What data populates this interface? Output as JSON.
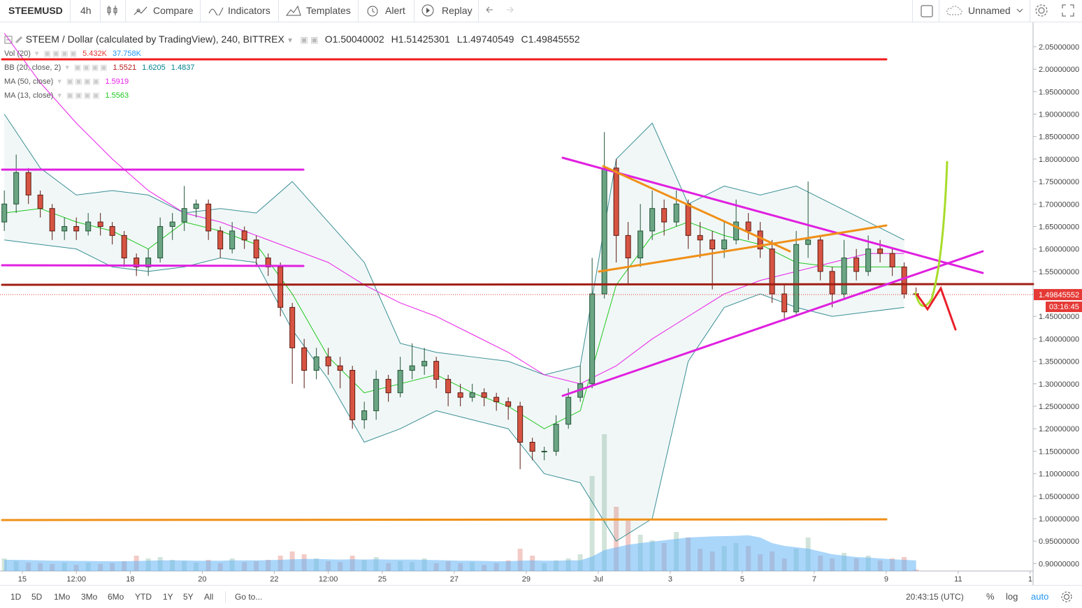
{
  "toolbar": {
    "symbol": "STEEMUSD",
    "interval": "4h",
    "buttons": [
      "Compare",
      "Indicators",
      "Templates",
      "Alert",
      "Replay"
    ],
    "layout_name": "Unnamed"
  },
  "legend": {
    "title": "STEEM / Dollar (calculated by TradingView), 240, BITTREX",
    "ohlc": [
      "O1.50040002",
      "H1.51425301",
      "L1.49740549",
      "C1.49845552"
    ],
    "studies": [
      {
        "label": "Vol (20)",
        "values": [
          "5.432K",
          "37.758K"
        ],
        "colors": [
          "#e53935",
          "#2196f3"
        ]
      },
      {
        "label": "BB (20, close, 2)",
        "values": [
          "1.5521",
          "1.6205",
          "1.4837"
        ],
        "colors": [
          "#b71c1c",
          "#00838f",
          "#00838f"
        ]
      },
      {
        "label": "MA (50, close)",
        "values": [
          "1.5919"
        ],
        "colors": [
          "#e91ee9"
        ]
      },
      {
        "label": "MA (13, close)",
        "values": [
          "1.5563"
        ],
        "colors": [
          "#1ec81e"
        ]
      }
    ]
  },
  "chart_data": {
    "type": "candlestick",
    "x": [
      -0.5,
      -0.17,
      0.17,
      0.5,
      0.83,
      1.17,
      1.5,
      1.83,
      2.17,
      2.5,
      2.83,
      3.17,
      3.5,
      3.83,
      4.17,
      4.5,
      4.83,
      5.17,
      5.5,
      5.83,
      6.17,
      6.5,
      6.83,
      7.17,
      7.5,
      7.83,
      8.17,
      8.5,
      8.83,
      9.17,
      9.5,
      9.83,
      10.17,
      10.5,
      10.83,
      11.17,
      11.5,
      11.83,
      12.17,
      12.5,
      12.83,
      13.17,
      13.5,
      13.83,
      14.17,
      14.5,
      14.83,
      15.17,
      15.5,
      15.83,
      16.17,
      16.5,
      16.83,
      17.17,
      17.5,
      17.83,
      18.17,
      18.5,
      18.83,
      19.17,
      19.5,
      19.83,
      20.17,
      20.5,
      20.83,
      21.17,
      21.5,
      21.83,
      22.17,
      22.5,
      22.83,
      23.17,
      23.5,
      23.83,
      24.17,
      24.5,
      24.83
    ],
    "candles": [
      [
        1.66,
        1.73,
        1.64,
        1.7
      ],
      [
        1.7,
        1.81,
        1.68,
        1.77
      ],
      [
        1.77,
        1.78,
        1.7,
        1.72
      ],
      [
        1.72,
        1.73,
        1.67,
        1.69
      ],
      [
        1.69,
        1.7,
        1.62,
        1.64
      ],
      [
        1.64,
        1.67,
        1.62,
        1.65
      ],
      [
        1.65,
        1.67,
        1.62,
        1.64
      ],
      [
        1.64,
        1.68,
        1.63,
        1.66
      ],
      [
        1.66,
        1.68,
        1.63,
        1.65
      ],
      [
        1.65,
        1.66,
        1.61,
        1.63
      ],
      [
        1.63,
        1.64,
        1.56,
        1.58
      ],
      [
        1.58,
        1.59,
        1.54,
        1.56
      ],
      [
        1.56,
        1.6,
        1.54,
        1.58
      ],
      [
        1.58,
        1.67,
        1.57,
        1.65
      ],
      [
        1.65,
        1.68,
        1.62,
        1.66
      ],
      [
        1.66,
        1.74,
        1.64,
        1.69
      ],
      [
        1.69,
        1.71,
        1.67,
        1.7
      ],
      [
        1.7,
        1.71,
        1.62,
        1.64
      ],
      [
        1.64,
        1.65,
        1.58,
        1.6
      ],
      [
        1.6,
        1.66,
        1.59,
        1.64
      ],
      [
        1.64,
        1.65,
        1.6,
        1.62
      ],
      [
        1.62,
        1.63,
        1.56,
        1.58
      ],
      [
        1.58,
        1.59,
        1.54,
        1.56
      ],
      [
        1.56,
        1.57,
        1.45,
        1.47
      ],
      [
        1.47,
        1.48,
        1.3,
        1.38
      ],
      [
        1.38,
        1.4,
        1.29,
        1.33
      ],
      [
        1.33,
        1.38,
        1.31,
        1.36
      ],
      [
        1.36,
        1.38,
        1.32,
        1.34
      ],
      [
        1.34,
        1.36,
        1.29,
        1.33
      ],
      [
        1.33,
        1.34,
        1.2,
        1.22
      ],
      [
        1.22,
        1.26,
        1.2,
        1.24
      ],
      [
        1.24,
        1.33,
        1.22,
        1.31
      ],
      [
        1.31,
        1.32,
        1.26,
        1.28
      ],
      [
        1.28,
        1.36,
        1.27,
        1.33
      ],
      [
        1.33,
        1.39,
        1.31,
        1.34
      ],
      [
        1.34,
        1.38,
        1.32,
        1.35
      ],
      [
        1.35,
        1.36,
        1.29,
        1.31
      ],
      [
        1.31,
        1.32,
        1.25,
        1.28
      ],
      [
        1.28,
        1.3,
        1.25,
        1.27
      ],
      [
        1.27,
        1.3,
        1.26,
        1.28
      ],
      [
        1.28,
        1.29,
        1.25,
        1.27
      ],
      [
        1.27,
        1.28,
        1.24,
        1.26
      ],
      [
        1.26,
        1.27,
        1.22,
        1.25
      ],
      [
        1.25,
        1.26,
        1.11,
        1.17
      ],
      [
        1.17,
        1.18,
        1.13,
        1.15
      ],
      [
        1.15,
        1.16,
        1.13,
        1.15
      ],
      [
        1.15,
        1.23,
        1.14,
        1.21
      ],
      [
        1.21,
        1.29,
        1.2,
        1.27
      ],
      [
        1.27,
        1.34,
        1.26,
        1.3
      ],
      [
        1.3,
        1.58,
        1.29,
        1.5
      ],
      [
        1.5,
        1.86,
        1.49,
        1.78
      ],
      [
        1.78,
        1.8,
        1.57,
        1.63
      ],
      [
        1.63,
        1.66,
        1.52,
        1.58
      ],
      [
        1.58,
        1.7,
        1.56,
        1.64
      ],
      [
        1.64,
        1.73,
        1.62,
        1.69
      ],
      [
        1.69,
        1.71,
        1.63,
        1.66
      ],
      [
        1.66,
        1.73,
        1.65,
        1.7
      ],
      [
        1.7,
        1.71,
        1.6,
        1.63
      ],
      [
        1.63,
        1.66,
        1.58,
        1.62
      ],
      [
        1.62,
        1.64,
        1.51,
        1.6
      ],
      [
        1.6,
        1.66,
        1.58,
        1.62
      ],
      [
        1.62,
        1.71,
        1.61,
        1.66
      ],
      [
        1.66,
        1.68,
        1.62,
        1.64
      ],
      [
        1.64,
        1.66,
        1.58,
        1.6
      ],
      [
        1.6,
        1.62,
        1.48,
        1.5
      ],
      [
        1.5,
        1.52,
        1.44,
        1.46
      ],
      [
        1.46,
        1.64,
        1.45,
        1.61
      ],
      [
        1.61,
        1.75,
        1.58,
        1.62
      ],
      [
        1.62,
        1.63,
        1.53,
        1.55
      ],
      [
        1.55,
        1.56,
        1.47,
        1.5
      ],
      [
        1.5,
        1.62,
        1.49,
        1.58
      ],
      [
        1.58,
        1.6,
        1.53,
        1.55
      ],
      [
        1.55,
        1.63,
        1.54,
        1.6
      ],
      [
        1.6,
        1.62,
        1.57,
        1.59
      ],
      [
        1.59,
        1.6,
        1.54,
        1.56
      ],
      [
        1.56,
        1.57,
        1.49,
        1.5
      ],
      [
        1.5004,
        1.5143,
        1.4974,
        1.4985
      ]
    ],
    "up_color": "#6ba583",
    "down_color": "#d75442",
    "volume": {
      "lim": [
        0,
        500
      ],
      "values": [
        45,
        35,
        30,
        28,
        25,
        30,
        22,
        30,
        25,
        28,
        35,
        55,
        45,
        50,
        40,
        35,
        30,
        40,
        28,
        45,
        32,
        35,
        40,
        55,
        70,
        60,
        45,
        35,
        32,
        55,
        40,
        50,
        28,
        35,
        32,
        45,
        28,
        35,
        28,
        32,
        22,
        28,
        38,
        80,
        55,
        28,
        38,
        45,
        60,
        340,
        490,
        230,
        180,
        130,
        110,
        100,
        140,
        120,
        80,
        70,
        90,
        100,
        90,
        60,
        70,
        45,
        80,
        120,
        55,
        45,
        65,
        45,
        55,
        38,
        45,
        50,
        5.432
      ],
      "ma": [
        40,
        40,
        39,
        38,
        37,
        37,
        36,
        36,
        35,
        35,
        35,
        36,
        37,
        38,
        38,
        38,
        37,
        37,
        37,
        38,
        38,
        38,
        39,
        40,
        42,
        43,
        43,
        42,
        41,
        42,
        41,
        42,
        41,
        41,
        41,
        40,
        39,
        38,
        37,
        37,
        36,
        35,
        35,
        37,
        38,
        37,
        37,
        38,
        38,
        52,
        75,
        85,
        94,
        100,
        105,
        110,
        115,
        120,
        122,
        124,
        125,
        126,
        128,
        120,
        100,
        90,
        85,
        80,
        70,
        60,
        55,
        50,
        48,
        45,
        42,
        40,
        37.758
      ],
      "ma_color": "#64b5f6"
    },
    "indicator_x": [
      -0.5,
      0.5,
      1.5,
      2.5,
      3.5,
      4.5,
      5.5,
      6.5,
      7.5,
      8.5,
      9.5,
      10.5,
      11.5,
      12.5,
      13.5,
      14.5,
      15.5,
      16.5,
      17.5,
      18.5,
      19.5,
      20.5,
      21.5,
      22.5,
      23.5,
      24.5
    ],
    "bands": {
      "color": "#3a8f94",
      "upper": [
        1.9,
        1.78,
        1.72,
        1.73,
        1.72,
        1.68,
        1.69,
        1.68,
        1.75,
        1.66,
        1.57,
        1.39,
        1.37,
        1.36,
        1.35,
        1.32,
        1.34,
        1.8,
        1.88,
        1.7,
        1.74,
        1.72,
        1.74,
        1.7,
        1.66,
        1.62
      ],
      "lower": [
        1.62,
        1.61,
        1.6,
        1.56,
        1.55,
        1.56,
        1.58,
        1.57,
        1.42,
        1.31,
        1.17,
        1.2,
        1.24,
        1.22,
        1.2,
        1.1,
        1.08,
        0.95,
        1.0,
        1.35,
        1.47,
        1.5,
        1.47,
        1.45,
        1.46,
        1.47
      ]
    },
    "lines": [
      {
        "color": "#e91ee9",
        "values": [
          2.08,
          1.97,
          1.88,
          1.8,
          1.73,
          1.68,
          1.66,
          1.63,
          1.6,
          1.57,
          1.52,
          1.48,
          1.45,
          1.41,
          1.37,
          1.32,
          1.3,
          1.34,
          1.4,
          1.45,
          1.5,
          1.53,
          1.55,
          1.57,
          1.59,
          1.59
        ]
      },
      {
        "color": "#1ec81e",
        "values": [
          1.68,
          1.69,
          1.66,
          1.64,
          1.6,
          1.66,
          1.64,
          1.61,
          1.5,
          1.36,
          1.28,
          1.3,
          1.32,
          1.28,
          1.25,
          1.2,
          1.24,
          1.52,
          1.63,
          1.66,
          1.63,
          1.61,
          1.57,
          1.56,
          1.56,
          1.56
        ]
      }
    ],
    "xlim": [
      -0.62,
      28.08
    ],
    "xticks": [
      {
        "value": 0,
        "label": "15"
      },
      {
        "value": 1.5,
        "label": "12:00"
      },
      {
        "value": 3,
        "label": "18"
      },
      {
        "value": 5,
        "label": "20"
      },
      {
        "value": 7,
        "label": "22"
      },
      {
        "value": 8.5,
        "label": "12:00"
      },
      {
        "value": 10,
        "label": "25"
      },
      {
        "value": 12,
        "label": "27"
      },
      {
        "value": 14,
        "label": "29"
      },
      {
        "value": 16,
        "label": "Jul"
      },
      {
        "value": 18,
        "label": "3"
      },
      {
        "value": 20,
        "label": "5"
      },
      {
        "value": 22,
        "label": "7"
      },
      {
        "value": 24,
        "label": "9"
      },
      {
        "value": 26,
        "label": "11"
      },
      {
        "value": 28,
        "label": "1"
      }
    ],
    "ylim": [
      0.8835,
      2.098
    ],
    "yticks": [
      {
        "value": 0.9,
        "label": "0.90000000"
      },
      {
        "value": 0.95,
        "label": "0.95000000"
      },
      {
        "value": 1,
        "label": "1.00000000"
      },
      {
        "value": 1.05,
        "label": "1.05000000"
      },
      {
        "value": 1.1,
        "label": "1.10000000"
      },
      {
        "value": 1.15,
        "label": "1.15000000"
      },
      {
        "value": 1.2,
        "label": "1.20000000"
      },
      {
        "value": 1.25,
        "label": "1.25000000"
      },
      {
        "value": 1.3,
        "label": "1.30000000"
      },
      {
        "value": 1.35,
        "label": "1.35000000"
      },
      {
        "value": 1.4,
        "label": "1.40000000"
      },
      {
        "value": 1.45,
        "label": "1.45000000"
      },
      {
        "value": 1.5,
        "label": "1.50000000"
      },
      {
        "value": 1.55,
        "label": "1.55000000"
      },
      {
        "value": 1.6,
        "label": "1.60000000"
      },
      {
        "value": 1.65,
        "label": "1.65000000"
      },
      {
        "value": 1.7,
        "label": "1.70000000"
      },
      {
        "value": 1.75,
        "label": "1.75000000"
      },
      {
        "value": 1.8,
        "label": "1.80000000"
      },
      {
        "value": 1.85,
        "label": "1.85000000"
      },
      {
        "value": 1.9,
        "label": "1.90000000"
      },
      {
        "value": 1.95,
        "label": "1.95000000"
      },
      {
        "value": 2,
        "label": "2.00000000"
      },
      {
        "value": 2.05,
        "label": "2.05000000"
      }
    ],
    "last_price": {
      "value": 1.49845552,
      "label": "1.49845552",
      "countdown": "03:16:45",
      "color": "#e53935"
    }
  },
  "bottom_bar": {
    "ranges": [
      "1D",
      "5D",
      "1Mo",
      "3Mo",
      "6Mo",
      "YTD",
      "1Y",
      "5Y",
      "All"
    ],
    "goto": "Go to...",
    "clock": "20:43:15 (UTC)",
    "toggles": [
      "%",
      "log",
      "auto"
    ]
  }
}
